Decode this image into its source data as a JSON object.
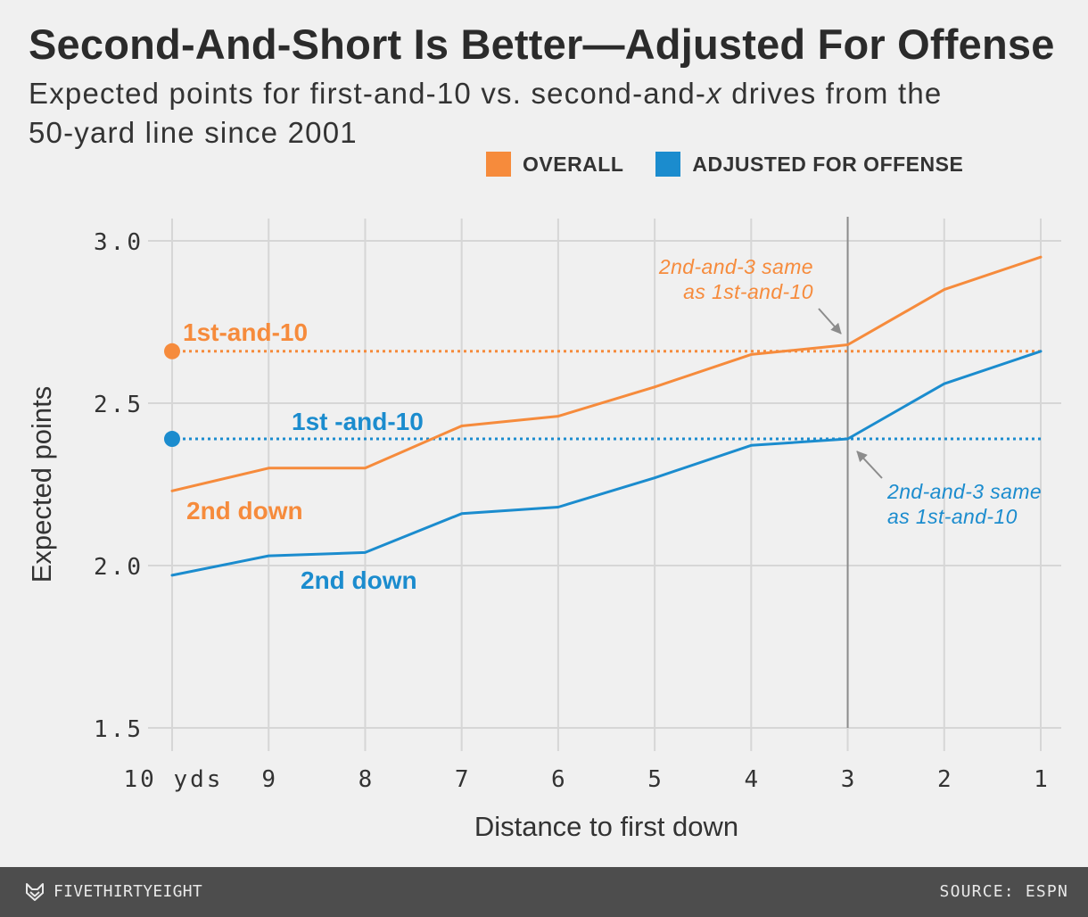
{
  "chart_data": {
    "type": "line",
    "title": "Second-And-Short Is Better—Adjusted For Offense",
    "subtitle": {
      "line1_start": "Expected points for first-and-10 vs. second-and-",
      "line1_italic": "x",
      "line1_end": " drives from the",
      "line2": "50-yard line since 2001"
    },
    "xlabel": "Distance to first down",
    "ylabel": "Expected points",
    "x": [
      10,
      9,
      8,
      7,
      6,
      5,
      4,
      3,
      2,
      1
    ],
    "xtick_labels": [
      "10 yds",
      "9",
      "8",
      "7",
      "6",
      "5",
      "4",
      "3",
      "2",
      "1"
    ],
    "xlim": [
      10,
      1
    ],
    "yticks": [
      3.0,
      2.5,
      2.0,
      1.5
    ],
    "ytick_labels": [
      "3.0",
      "2.5",
      "2.0",
      "1.5"
    ],
    "ylim": [
      1.5,
      3.0
    ],
    "grid": true,
    "series": [
      {
        "legend_label": "OVERALL",
        "curve_label": "2nd down",
        "color": "#f68b3c",
        "values": [
          2.23,
          2.3,
          2.3,
          2.43,
          2.46,
          2.55,
          2.65,
          2.68,
          2.85,
          2.95
        ]
      },
      {
        "legend_label": "ADJUSTED FOR OFFENSE",
        "curve_label": "2nd down",
        "color": "#1b8cce",
        "values": [
          1.97,
          2.03,
          2.04,
          2.16,
          2.18,
          2.27,
          2.37,
          2.39,
          2.56,
          2.66
        ]
      }
    ],
    "reference_lines": [
      {
        "series_index": 0,
        "label": "1st-and-10",
        "value": 2.66,
        "color": "#f68b3c"
      },
      {
        "series_index": 1,
        "label": "1st -and-10",
        "value": 2.39,
        "color": "#1b8cce"
      }
    ],
    "highlight_x": 3,
    "annotations": [
      {
        "series_index": 0,
        "target_x": 3,
        "lines": [
          "2nd-and-3 same",
          "as 1st-and-10"
        ]
      },
      {
        "series_index": 1,
        "target_x": 3,
        "lines": [
          "2nd-and-3 same",
          "as 1st-and-10"
        ]
      }
    ]
  },
  "footer": {
    "logo_icon": "fivethirtyeight-fox-icon",
    "brand": "FIVETHIRTYEIGHT",
    "source": "SOURCE: ESPN"
  }
}
